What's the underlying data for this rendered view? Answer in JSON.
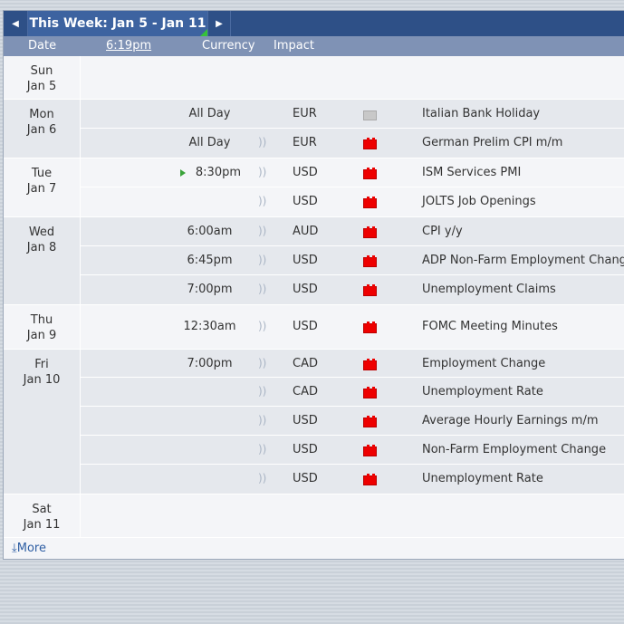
{
  "nav": {
    "prev_icon": "◀",
    "next_icon": "▶",
    "title": "This Week: Jan 5 - Jan 11"
  },
  "header": {
    "date": "Date",
    "time": "6:19pm",
    "currency": "Currency",
    "impact": "Impact"
  },
  "days": [
    {
      "dow": "Sun",
      "date": "Jan 5",
      "events": []
    },
    {
      "dow": "Mon",
      "date": "Jan 6",
      "events": [
        {
          "time": "All Day",
          "currency": "EUR",
          "impact": "holiday",
          "title": "Italian Bank Holiday",
          "sound": false
        },
        {
          "time": "All Day",
          "currency": "EUR",
          "impact": "high",
          "title": "German Prelim CPI m/m",
          "sound": true
        }
      ]
    },
    {
      "dow": "Tue",
      "date": "Jan 7",
      "events": [
        {
          "time": "8:30pm",
          "currency": "USD",
          "impact": "high",
          "title": "ISM Services PMI",
          "sound": true,
          "next": true
        },
        {
          "time": "",
          "currency": "USD",
          "impact": "high",
          "title": "JOLTS Job Openings",
          "sound": true
        }
      ]
    },
    {
      "dow": "Wed",
      "date": "Jan 8",
      "events": [
        {
          "time": "6:00am",
          "currency": "AUD",
          "impact": "high",
          "title": "CPI y/y",
          "sound": true
        },
        {
          "time": "6:45pm",
          "currency": "USD",
          "impact": "high",
          "title": "ADP Non-Farm Employment Change",
          "sound": true
        },
        {
          "time": "7:00pm",
          "currency": "USD",
          "impact": "high",
          "title": "Unemployment Claims",
          "sound": true
        }
      ]
    },
    {
      "dow": "Thu",
      "date": "Jan 9",
      "events": [
        {
          "time": "12:30am",
          "currency": "USD",
          "impact": "high",
          "title": "FOMC Meeting Minutes",
          "sound": true
        }
      ]
    },
    {
      "dow": "Fri",
      "date": "Jan 10",
      "events": [
        {
          "time": "7:00pm",
          "currency": "CAD",
          "impact": "high",
          "title": "Employment Change",
          "sound": true
        },
        {
          "time": "",
          "currency": "CAD",
          "impact": "high",
          "title": "Unemployment Rate",
          "sound": true
        },
        {
          "time": "",
          "currency": "USD",
          "impact": "high",
          "title": "Average Hourly Earnings m/m",
          "sound": true
        },
        {
          "time": "",
          "currency": "USD",
          "impact": "high",
          "title": "Non-Farm Employment Change",
          "sound": true
        },
        {
          "time": "",
          "currency": "USD",
          "impact": "high",
          "title": "Unemployment Rate",
          "sound": true
        }
      ]
    },
    {
      "dow": "Sat",
      "date": "Jan 11",
      "events": []
    }
  ],
  "more": {
    "icon": "⤓",
    "label": "More"
  },
  "colors": {
    "nav_bg": "#2e5087",
    "header_bg": "#7f92b5",
    "high_impact": "#dd0000",
    "holiday_impact": "#c8c8c8",
    "next_marker": "#3aa33a",
    "link": "#2e5ea3"
  }
}
